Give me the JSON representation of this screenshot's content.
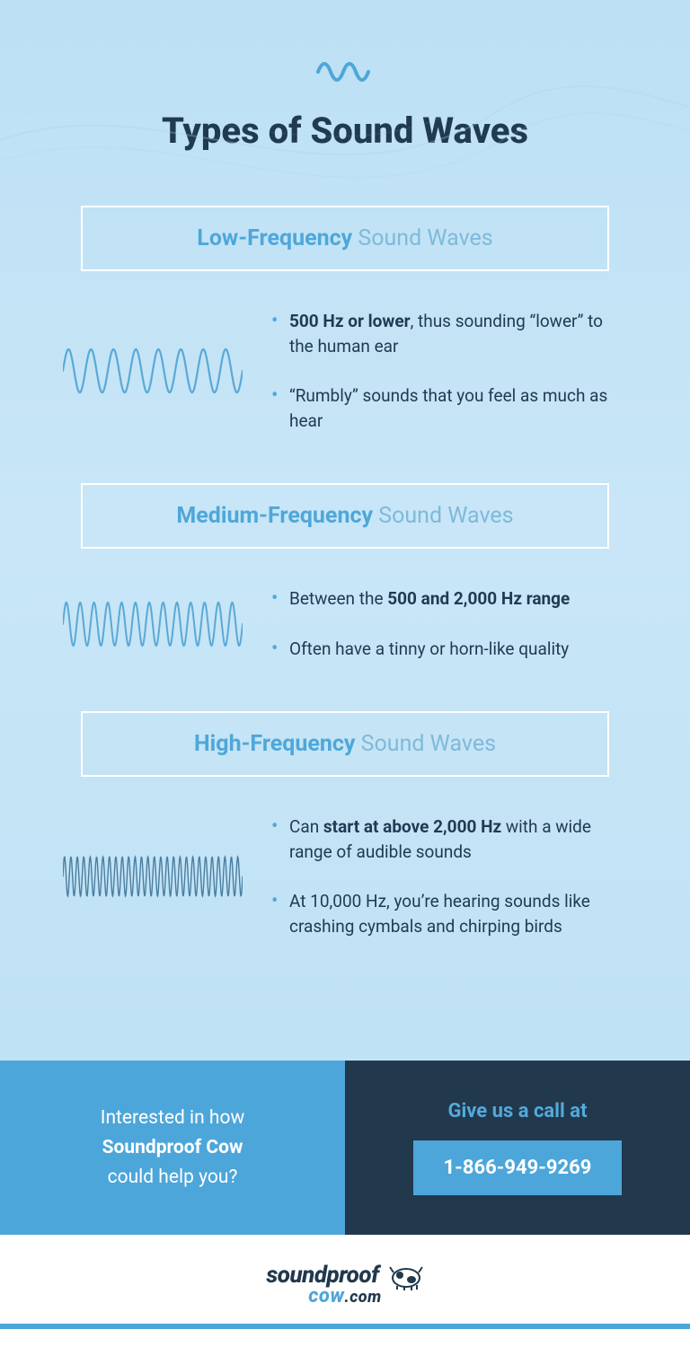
{
  "colors": {
    "bg_gradient_top": "#bde0f5",
    "bg_gradient_bottom": "#c0e2f5",
    "accent": "#4ea7d8",
    "accent_muted": "#7fb9db",
    "text_dark": "#1f3a52",
    "cta_left_bg": "#4da6d9",
    "cta_right_bg": "#21384d",
    "white": "#ffffff",
    "wave_stroke": "#5aa9d6"
  },
  "typography": {
    "title_fontsize": 40,
    "section_header_fontsize": 25,
    "bullet_fontsize": 19,
    "cta_fontsize": 21,
    "phone_fontsize": 22
  },
  "title": "Types of Sound Waves",
  "sections": [
    {
      "id": "low",
      "heading_strong": "Low-Frequency",
      "heading_suffix": " Sound Waves",
      "wave": {
        "cycles": 8,
        "amplitude": 24,
        "stroke_width": 2.2,
        "stroke": "#5aa9d6"
      },
      "bullets": [
        {
          "pre": "",
          "bold": "500 Hz or lower",
          "post": ", thus sounding “lower” to the human ear"
        },
        {
          "pre": "“Rumbly” sounds that you feel as much as hear",
          "bold": "",
          "post": ""
        }
      ]
    },
    {
      "id": "medium",
      "heading_strong": "Medium-Frequency",
      "heading_suffix": " Sound Waves",
      "wave": {
        "cycles": 13,
        "amplitude": 24,
        "stroke_width": 2.0,
        "stroke": "#5aa9d6"
      },
      "bullets": [
        {
          "pre": "Between the ",
          "bold": "500 and 2,000 Hz range",
          "post": ""
        },
        {
          "pre": "Often have a tinny or horn-like quality",
          "bold": "",
          "post": ""
        }
      ]
    },
    {
      "id": "high",
      "heading_strong": "High-Frequency",
      "heading_suffix": " Sound Waves",
      "wave": {
        "cycles": 28,
        "amplitude": 22,
        "stroke_width": 1.4,
        "stroke": "#4a7ea0"
      },
      "bullets": [
        {
          "pre": "Can ",
          "bold": "start at above 2,000 Hz",
          "post": " with a wide range of audible sounds"
        },
        {
          "pre": "At 10,000 Hz, you’re hearing sounds like crashing cymbals and chirping birds",
          "bold": "",
          "post": ""
        }
      ]
    }
  ],
  "cta": {
    "left_line1": "Interested in how",
    "left_bold": "Soundproof Cow",
    "left_line3": "could help you?",
    "right_label": "Give us a call at",
    "phone": "1-866-949-9269"
  },
  "footer": {
    "brand_left": "sound",
    "brand_right": "proof",
    "sub_left": "cow",
    "sub_right": ".com"
  }
}
